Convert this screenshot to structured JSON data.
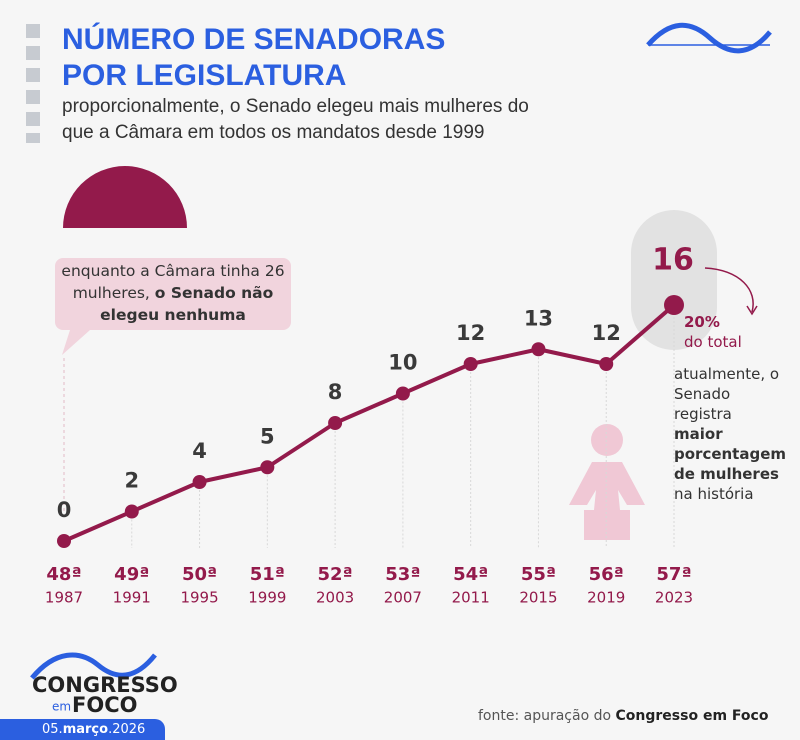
{
  "chart_data": {
    "type": "line",
    "title": [
      "NÚMERO DE SENADORAS",
      "POR LEGISLATURA"
    ],
    "subtitle": [
      "proporcionalmente, o Senado elegeu mais mulheres do",
      "que a Câmara em todos os mandatos desde 1999"
    ],
    "categories": [
      "48ª",
      "49ª",
      "50ª",
      "51ª",
      "52ª",
      "53ª",
      "54ª",
      "55ª",
      "56ª",
      "57ª"
    ],
    "years": [
      "1987",
      "1991",
      "1995",
      "1999",
      "2003",
      "2007",
      "2011",
      "2015",
      "2019",
      "2023"
    ],
    "values": [
      0,
      2,
      4,
      5,
      8,
      10,
      12,
      13,
      12,
      16
    ],
    "color": "#931a4b",
    "callout": {
      "text": "enquanto a Câmara tinha 26 mulheres, ",
      "bold": "o Senado não elegeu nenhuma"
    },
    "highlight": {
      "percent": "20%",
      "of_total": "do total",
      "text": "atualmente, o Senado registra",
      "bold": "maior porcentagem de mulheres",
      "end": "na história"
    },
    "source": {
      "text": "fonte: apuração do ",
      "bold": "Congresso em Foco"
    },
    "date": [
      "05.",
      "março",
      ".2026"
    ],
    "logo": [
      "CONGRESSO",
      "em",
      "FOCO"
    ]
  }
}
